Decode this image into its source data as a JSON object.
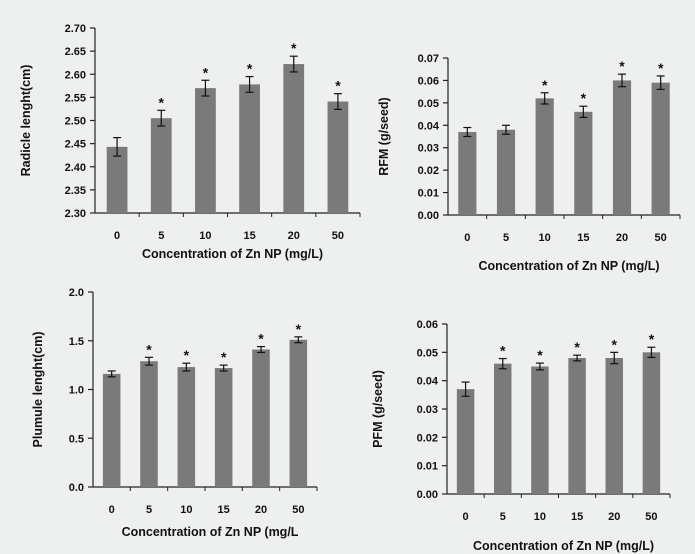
{
  "colors": {
    "background": "#eef0f0",
    "bar": "#7a7a7a",
    "axis": "#222222",
    "text": "#111111"
  },
  "chart_data": [
    {
      "type": "bar",
      "categories": [
        "0",
        "5",
        "10",
        "15",
        "20",
        "50"
      ],
      "values": [
        2.443,
        2.505,
        2.57,
        2.578,
        2.622,
        2.541
      ],
      "errors": [
        0.02,
        0.017,
        0.017,
        0.017,
        0.017,
        0.017
      ],
      "significant": [
        false,
        true,
        true,
        true,
        true,
        true
      ],
      "marker": "*",
      "ylim": [
        2.3,
        2.7
      ],
      "yticks": [
        "2.30",
        "2.35",
        "2.40",
        "2.45",
        "2.50",
        "2.55",
        "2.60",
        "2.65",
        "2.70"
      ],
      "xlabel": "Concentration of Zn NP (mg/L)",
      "ylabel": "Radicle lenght(cm)"
    },
    {
      "type": "bar",
      "categories": [
        "0",
        "5",
        "10",
        "15",
        "20",
        "50"
      ],
      "values": [
        0.037,
        0.038,
        0.052,
        0.046,
        0.06,
        0.059
      ],
      "errors": [
        0.002,
        0.002,
        0.0025,
        0.0025,
        0.0028,
        0.003
      ],
      "significant": [
        false,
        false,
        true,
        true,
        true,
        true
      ],
      "marker": "*",
      "ylim": [
        0,
        0.07
      ],
      "yticks": [
        "0.00",
        "0.01",
        "0.02",
        "0.03",
        "0.04",
        "0.05",
        "0.06",
        "0.07"
      ],
      "xlabel": "Concentration of Zn NP (mg/L)",
      "ylabel": "RFM (g/seed)"
    },
    {
      "type": "bar",
      "categories": [
        "0",
        "5",
        "10",
        "15",
        "20",
        "50"
      ],
      "values": [
        1.16,
        1.29,
        1.23,
        1.22,
        1.41,
        1.51
      ],
      "errors": [
        0.03,
        0.04,
        0.04,
        0.03,
        0.03,
        0.03
      ],
      "significant": [
        false,
        true,
        true,
        true,
        true,
        true
      ],
      "marker": "*",
      "ylim": [
        0,
        2.0
      ],
      "yticks": [
        "0.0",
        "0.5",
        "1.0",
        "1.5",
        "2.0"
      ],
      "xlabel": "Concentration of Zn NP (mg/L",
      "ylabel": "Plumule lenght(cm)"
    },
    {
      "type": "bar",
      "categories": [
        "0",
        "5",
        "10",
        "15",
        "20",
        "50"
      ],
      "values": [
        0.037,
        0.046,
        0.045,
        0.048,
        0.048,
        0.05
      ],
      "errors": [
        0.0025,
        0.0018,
        0.0012,
        0.001,
        0.002,
        0.0018
      ],
      "significant": [
        false,
        true,
        true,
        true,
        true,
        true
      ],
      "marker": "*",
      "ylim": [
        0,
        0.06
      ],
      "yticks": [
        "0.00",
        "0.01",
        "0.02",
        "0.03",
        "0.04",
        "0.05",
        "0.06"
      ],
      "xlabel": "Concentration of Zn NP (mg/L)",
      "ylabel": "PFM (g/seed)"
    }
  ]
}
